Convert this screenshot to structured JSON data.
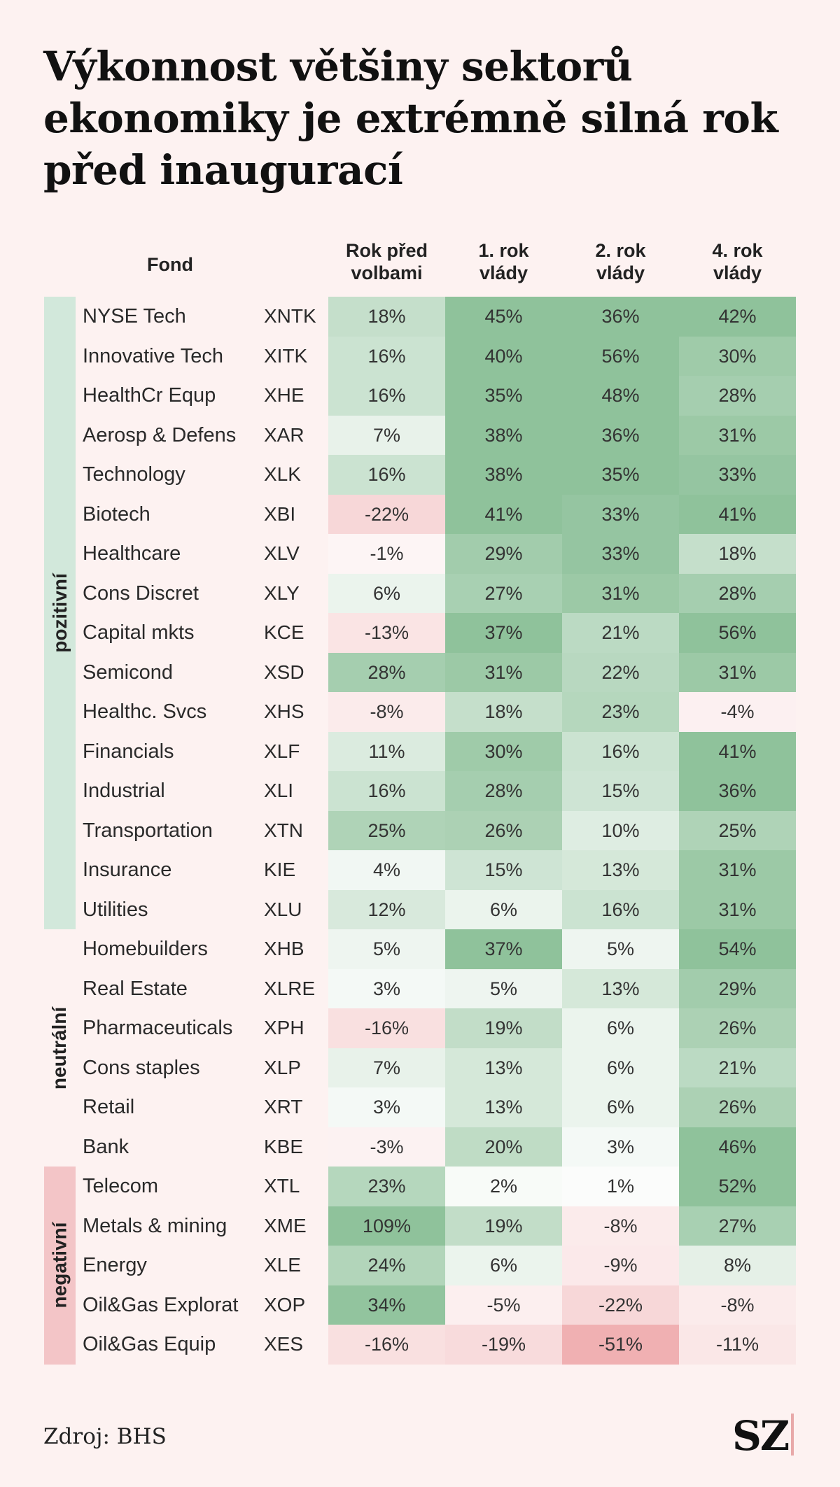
{
  "title": "Výkonnost většiny sektorů ekonomiky je extrémně silná rok před inaugurací",
  "source": "Zdroj: BHS",
  "logo": "SZ",
  "colors": {
    "background": "#fdf2f1",
    "positive_group": "#d2e8db",
    "negative_group": "#f3c5c7"
  },
  "headers": {
    "fund": "Fond",
    "col1": [
      "Rok před",
      "volbami"
    ],
    "col2": [
      "1. rok",
      "vlády"
    ],
    "col3": [
      "2. rok",
      "vlády"
    ],
    "col4": [
      "4. rok",
      "vlády"
    ]
  },
  "groups": [
    {
      "label": "pozitivní",
      "start": 0,
      "end": 15,
      "color": "#d2e8db"
    },
    {
      "label": "neutrální",
      "start": 16,
      "end": 21,
      "color": "#fdf2f1"
    },
    {
      "label": "negativní",
      "start": 22,
      "end": 26,
      "color": "#f3c5c7"
    }
  ],
  "chart_data": {
    "type": "heatmap",
    "columns": [
      "Rok před volbami",
      "1. rok vlády",
      "2. rok vlády",
      "4. rok vlády"
    ],
    "rows": [
      {
        "fund": "NYSE Tech",
        "ticker": "XNTK",
        "values": [
          18,
          45,
          36,
          42
        ]
      },
      {
        "fund": "Innovative Tech",
        "ticker": "XITK",
        "values": [
          16,
          40,
          56,
          30
        ]
      },
      {
        "fund": "HealthCr Equp",
        "ticker": "XHE",
        "values": [
          16,
          35,
          48,
          28
        ]
      },
      {
        "fund": "Aerosp & Defens",
        "ticker": "XAR",
        "values": [
          7,
          38,
          36,
          31
        ]
      },
      {
        "fund": "Technology",
        "ticker": "XLK",
        "values": [
          16,
          38,
          35,
          33
        ]
      },
      {
        "fund": "Biotech",
        "ticker": "XBI",
        "values": [
          -22,
          41,
          33,
          41
        ]
      },
      {
        "fund": "Healthcare",
        "ticker": "XLV",
        "values": [
          -1,
          29,
          33,
          18
        ]
      },
      {
        "fund": "Cons Discret",
        "ticker": "XLY",
        "values": [
          6,
          27,
          31,
          28
        ]
      },
      {
        "fund": "Capital mkts",
        "ticker": "KCE",
        "values": [
          -13,
          37,
          21,
          56
        ]
      },
      {
        "fund": "Semicond",
        "ticker": "XSD",
        "values": [
          28,
          31,
          22,
          31
        ]
      },
      {
        "fund": "Healthc. Svcs",
        "ticker": "XHS",
        "values": [
          -8,
          18,
          23,
          -4
        ]
      },
      {
        "fund": "Financials",
        "ticker": "XLF",
        "values": [
          11,
          30,
          16,
          41
        ]
      },
      {
        "fund": "Industrial",
        "ticker": "XLI",
        "values": [
          16,
          28,
          15,
          36
        ]
      },
      {
        "fund": "Transportation",
        "ticker": "XTN",
        "values": [
          25,
          26,
          10,
          25
        ]
      },
      {
        "fund": "Insurance",
        "ticker": "KIE",
        "values": [
          4,
          15,
          13,
          31
        ]
      },
      {
        "fund": "Utilities",
        "ticker": "XLU",
        "values": [
          12,
          6,
          16,
          31
        ]
      },
      {
        "fund": "Homebuilders",
        "ticker": "XHB",
        "values": [
          5,
          37,
          5,
          54
        ]
      },
      {
        "fund": "Real Estate",
        "ticker": "XLRE",
        "values": [
          3,
          5,
          13,
          29
        ]
      },
      {
        "fund": "Pharmaceuticals",
        "ticker": "XPH",
        "values": [
          -16,
          19,
          6,
          26
        ]
      },
      {
        "fund": "Cons staples",
        "ticker": "XLP",
        "values": [
          7,
          13,
          6,
          21
        ]
      },
      {
        "fund": "Retail",
        "ticker": "XRT",
        "values": [
          3,
          13,
          6,
          26
        ]
      },
      {
        "fund": "Bank",
        "ticker": "KBE",
        "values": [
          -3,
          20,
          3,
          46
        ]
      },
      {
        "fund": "Telecom",
        "ticker": "XTL",
        "values": [
          23,
          2,
          1,
          52
        ]
      },
      {
        "fund": "Metals & mining",
        "ticker": "XME",
        "values": [
          109,
          19,
          -8,
          27
        ]
      },
      {
        "fund": "Energy",
        "ticker": "XLE",
        "values": [
          24,
          6,
          -9,
          8
        ]
      },
      {
        "fund": "Oil&Gas Explorat",
        "ticker": "XOP",
        "values": [
          34,
          -5,
          -22,
          -8
        ]
      },
      {
        "fund": "Oil&Gas Equip",
        "ticker": "XES",
        "values": [
          -16,
          -19,
          -51,
          -11
        ]
      }
    ]
  }
}
